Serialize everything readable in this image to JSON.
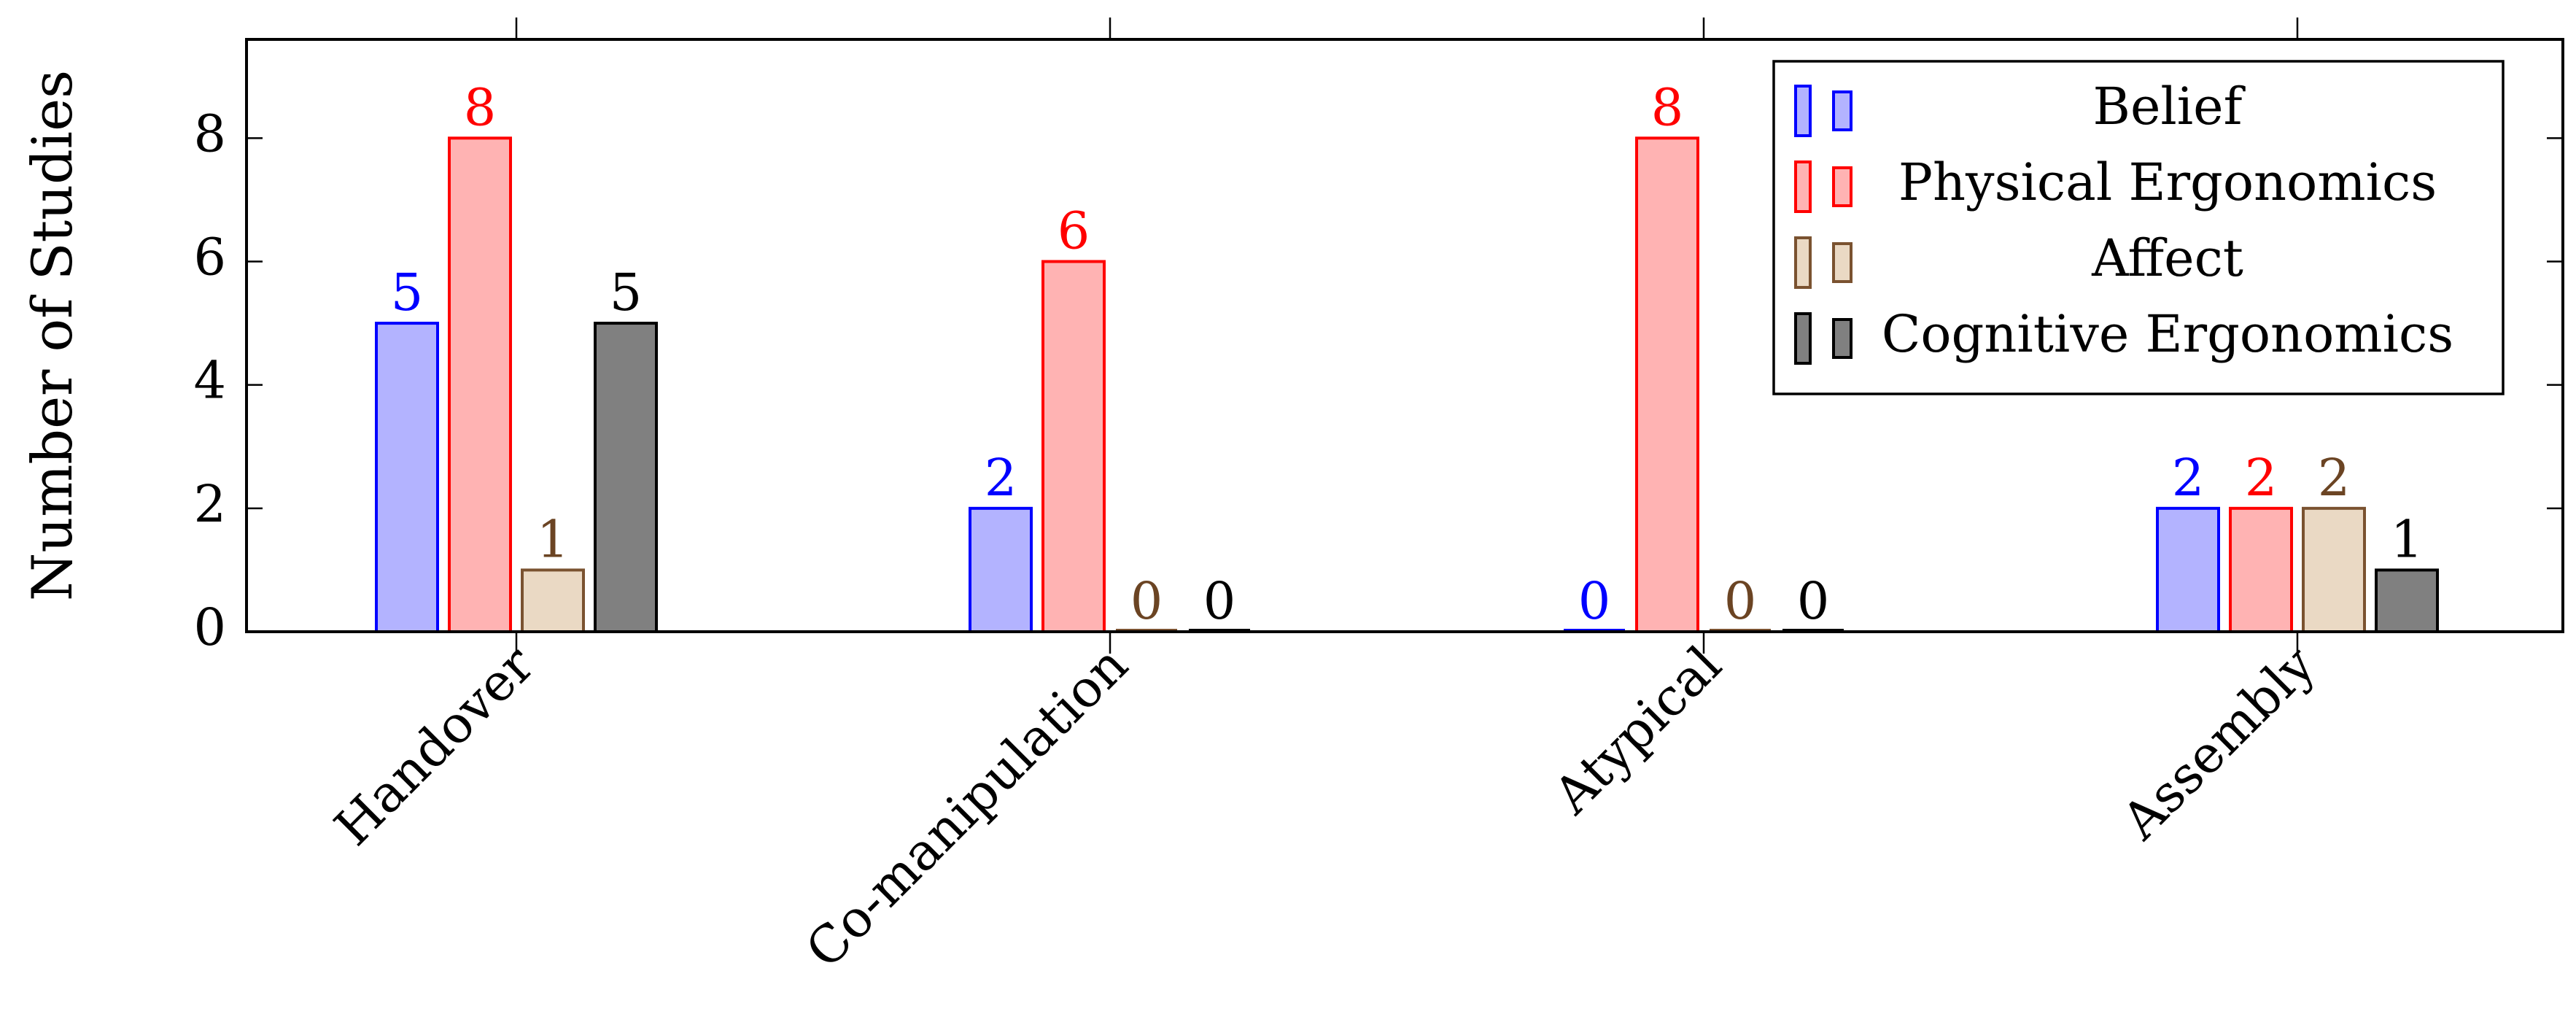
{
  "chart_data": {
    "type": "bar",
    "title": "",
    "xlabel": "",
    "ylabel": "Number of Studies",
    "categories": [
      "Handover",
      "Co-manipulation",
      "Atypical",
      "Assembly"
    ],
    "series": [
      {
        "name": "Belief",
        "values": [
          5,
          2,
          0,
          2
        ],
        "stroke": "#0000ff",
        "fill": "#b3b3ff",
        "label_color": "#0000ff"
      },
      {
        "name": "Physical Ergonomics",
        "values": [
          8,
          6,
          8,
          2
        ],
        "stroke": "#ff0000",
        "fill": "#ffb3b3",
        "label_color": "#ff0000"
      },
      {
        "name": "Affect",
        "values": [
          1,
          0,
          0,
          2
        ],
        "stroke": "#7a5230",
        "fill": "#ead9c4",
        "label_color": "#6b4423"
      },
      {
        "name": "Cognitive Ergonomics",
        "values": [
          5,
          0,
          0,
          1
        ],
        "stroke": "#000000",
        "fill": "#808080",
        "label_color": "#000000"
      }
    ],
    "yticks": [
      0,
      2,
      4,
      6,
      8
    ],
    "ylim": [
      0,
      9.6
    ],
    "grid": false,
    "legend_position": "top-right",
    "show_value_labels": true
  }
}
